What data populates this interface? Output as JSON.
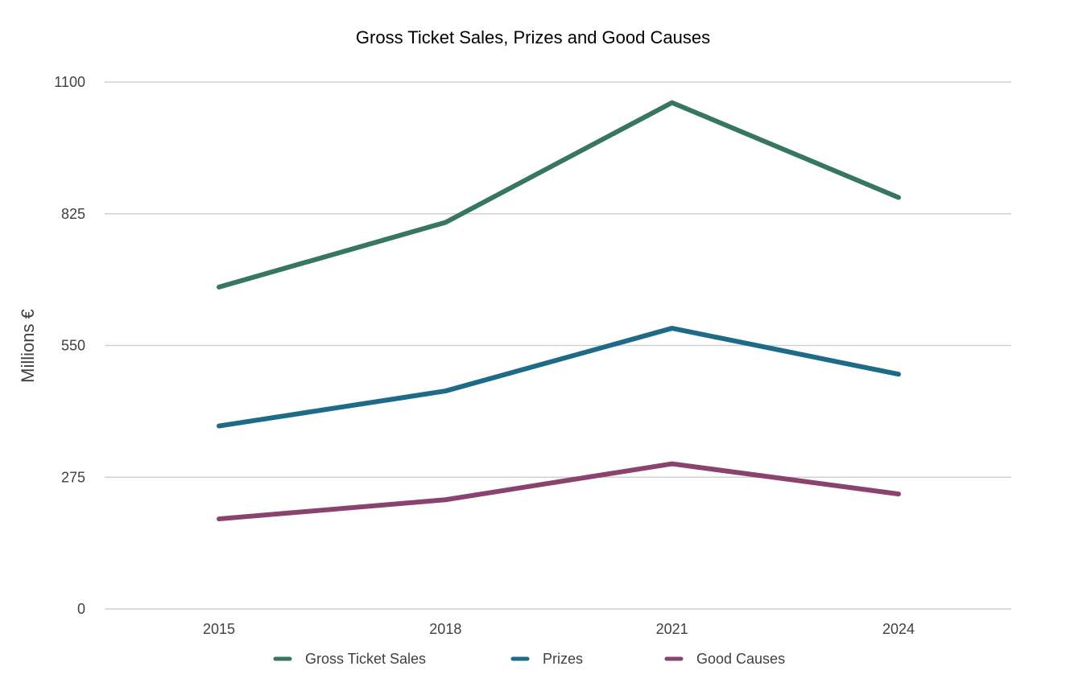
{
  "chart_data": {
    "type": "line",
    "title": "Gross Ticket Sales, Prizes and Good Causes",
    "xlabel": "",
    "ylabel": "Millions €",
    "categories": [
      "2015",
      "2018",
      "2021",
      "2024"
    ],
    "ylim": [
      0,
      1100
    ],
    "yticks": [
      0,
      275,
      550,
      825,
      1100
    ],
    "grid": true,
    "legend_position": "bottom",
    "series": [
      {
        "name": "Gross Ticket Sales",
        "color": "#37765f",
        "values": [
          672,
          807,
          1057,
          859
        ]
      },
      {
        "name": "Prizes",
        "color": "#1e6b87",
        "values": [
          382,
          455,
          586,
          490
        ]
      },
      {
        "name": "Good Causes",
        "color": "#8a426e",
        "values": [
          188,
          228,
          303,
          240
        ]
      }
    ]
  }
}
